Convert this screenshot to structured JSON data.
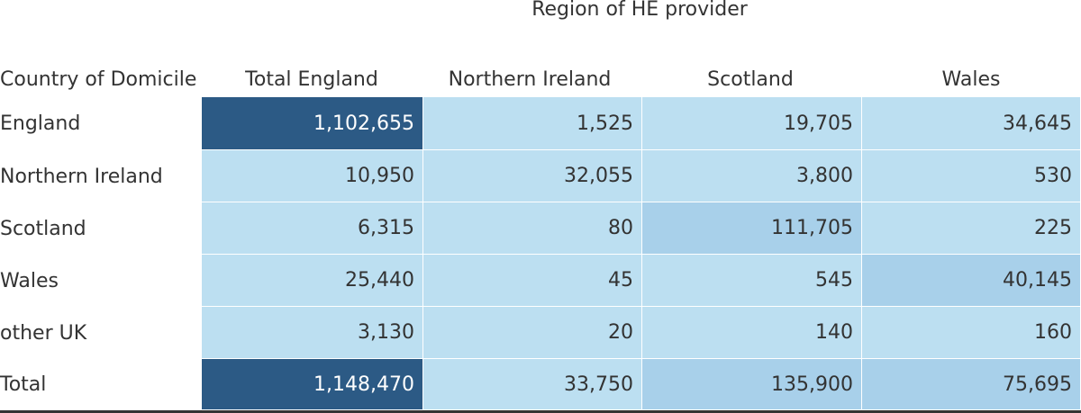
{
  "chart_data": {
    "type": "table",
    "title": "Region of HE provider",
    "row_header_label": "Country of Domicile",
    "columns": [
      "Total England",
      "Northern Ireland",
      "Scotland",
      "Wales"
    ],
    "rows": [
      {
        "label": "England",
        "values": [
          1102655,
          1525,
          19705,
          34645
        ],
        "display": [
          "1,102,655",
          "1,525",
          "19,705",
          "34,645"
        ]
      },
      {
        "label": "Northern Ireland",
        "values": [
          10950,
          32055,
          3800,
          530
        ],
        "display": [
          "10,950",
          "32,055",
          "3,800",
          "530"
        ]
      },
      {
        "label": "Scotland",
        "values": [
          6315,
          80,
          111705,
          225
        ],
        "display": [
          "6,315",
          "80",
          "111,705",
          "225"
        ]
      },
      {
        "label": "Wales",
        "values": [
          25440,
          45,
          545,
          40145
        ],
        "display": [
          "25,440",
          "45",
          "545",
          "40,145"
        ]
      },
      {
        "label": "other UK",
        "values": [
          3130,
          20,
          140,
          160
        ],
        "display": [
          "3,130",
          "20",
          "140",
          "160"
        ]
      },
      {
        "label": "Total",
        "values": [
          1148470,
          33750,
          135900,
          75695
        ],
        "display": [
          "1,148,470",
          "33,750",
          "135,900",
          "75,695"
        ]
      }
    ],
    "colors": {
      "light": "#bcdff1",
      "medium": "#a8d0ea",
      "dark": "#2c5a85",
      "text_dark_cell": "#ffffff",
      "text": "#333333"
    }
  }
}
